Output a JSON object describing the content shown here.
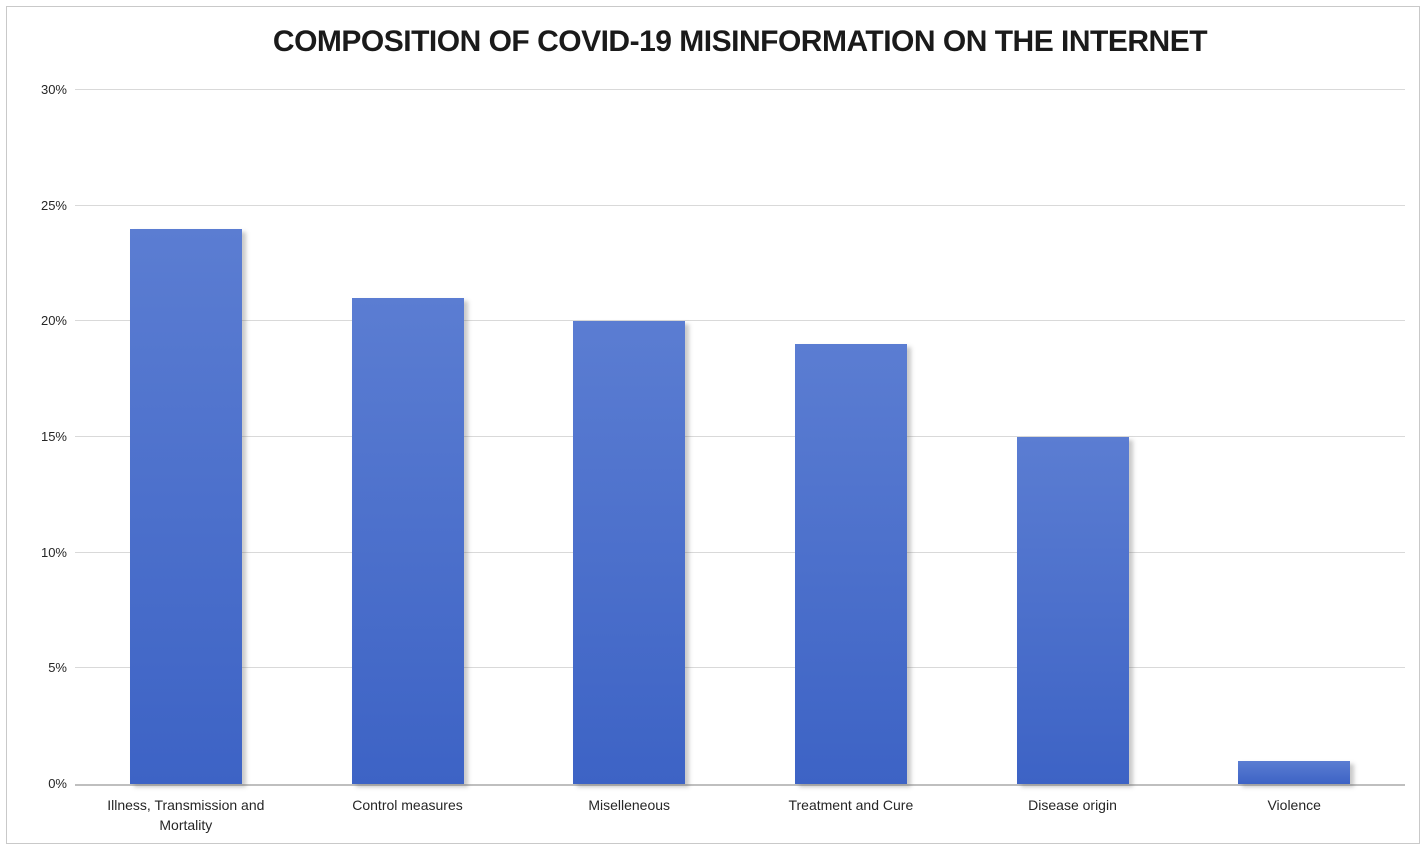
{
  "chart_data": {
    "type": "bar",
    "title": "COMPOSITION OF COVID-19 MISINFORMATION ON THE INTERNET",
    "categories": [
      "Illness, Transmission and Mortality",
      "Control measures",
      "Miselleneous",
      "Treatment and Cure",
      "Disease origin",
      "Violence"
    ],
    "values": [
      24,
      21,
      20,
      19,
      15,
      1
    ],
    "unit": "%",
    "xlabel": "",
    "ylabel": "",
    "ylim": [
      0,
      30
    ],
    "yticks": [
      0,
      5,
      10,
      15,
      20,
      25,
      30
    ],
    "ytick_labels": [
      "0%",
      "5%",
      "10%",
      "15%",
      "20%",
      "25%",
      "30%"
    ],
    "grid": true,
    "legend": false,
    "data_labels": false,
    "colors": {
      "bar_gradient_top": "#5b7dd2",
      "bar_gradient_bottom": "#3d63c5",
      "gridline": "#d9d9d9",
      "axis_line": "#bfbfbf",
      "frame_border": "#c9c9c9",
      "title_text": "#1a1a1a",
      "tick_text": "#262626"
    }
  }
}
